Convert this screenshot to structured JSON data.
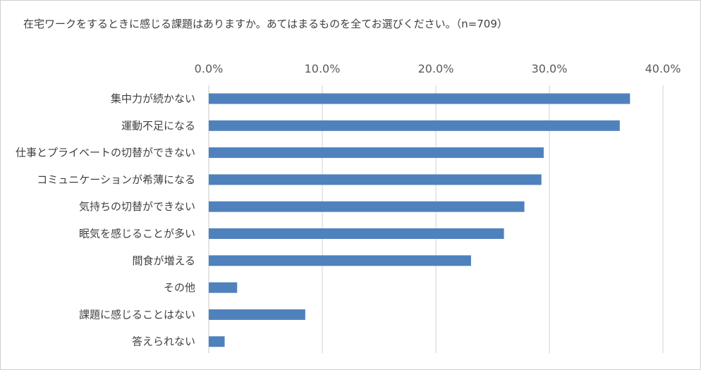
{
  "chart_data": {
    "type": "bar",
    "orientation": "horizontal",
    "title": "在宅ワークをするときに感じる課題はありますか。あてはまるものを全てお選びください。（n=709）",
    "categories": [
      "集中力が続かない",
      "運動不足になる",
      "仕事とプライベートの切替ができない",
      "コミュニケーションが希薄になる",
      "気持ちの切替ができない",
      "眠気を感じることが多い",
      "間食が増える",
      "その他",
      "課題に感じることはない",
      "答えられない"
    ],
    "values": [
      37.1,
      36.2,
      29.5,
      29.3,
      27.8,
      26.0,
      23.1,
      2.5,
      8.5,
      1.4
    ],
    "unit": "%",
    "xlim": [
      0,
      40
    ],
    "xticks": [
      "0.0%",
      "10.0%",
      "20.0%",
      "30.0%",
      "40.0%"
    ],
    "xtick_values": [
      0,
      10,
      20,
      30,
      40
    ],
    "axis_position": "top",
    "grid": true,
    "bar_color": "#4f81bd",
    "grid_color": "#d9d9d9"
  }
}
